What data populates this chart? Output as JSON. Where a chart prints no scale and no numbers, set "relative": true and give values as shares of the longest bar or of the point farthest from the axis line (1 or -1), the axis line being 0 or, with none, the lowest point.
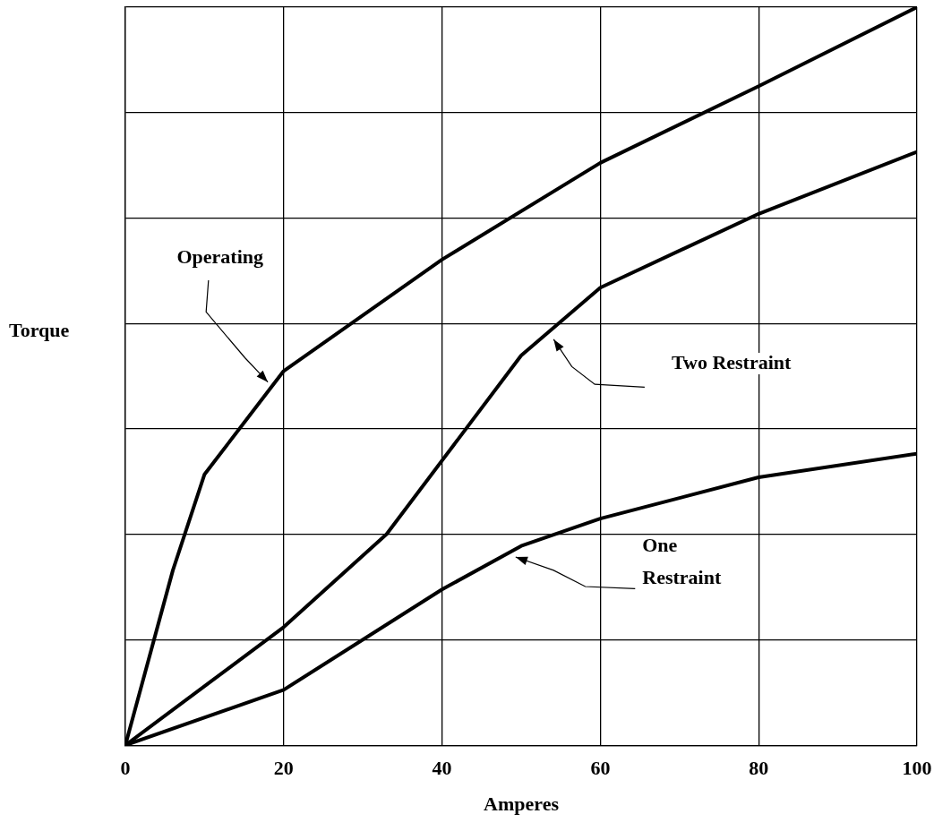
{
  "chart_data": {
    "type": "line",
    "xlabel": "Amperes",
    "ylabel": "Torque",
    "relative": true,
    "xlim": [
      0,
      100
    ],
    "xticks": [
      0,
      20,
      40,
      60,
      80,
      100
    ],
    "grid": true,
    "legend": false,
    "marker": "none",
    "line_style": "solid",
    "tick_labels": "x",
    "series": [
      {
        "color": "#000000",
        "x": [
          0,
          6,
          10,
          20,
          40,
          60,
          80,
          100
        ],
        "values": [
          0,
          0.237,
          0.367,
          0.507,
          0.658,
          0.789,
          0.893,
          1
        ]
      },
      {
        "color": "#000000",
        "x": [
          0,
          20,
          33,
          50,
          60,
          80,
          100
        ],
        "values": [
          0,
          0.16,
          0.286,
          0.528,
          0.62,
          0.72,
          0.804
        ]
      },
      {
        "color": "#000000",
        "x": [
          0,
          20,
          40,
          50,
          60,
          80,
          100
        ],
        "values": [
          0,
          0.075,
          0.211,
          0.27,
          0.307,
          0.363,
          0.395
        ]
      }
    ],
    "annotations": [
      "Operating",
      "Two Restraint",
      "One Restraint"
    ]
  }
}
